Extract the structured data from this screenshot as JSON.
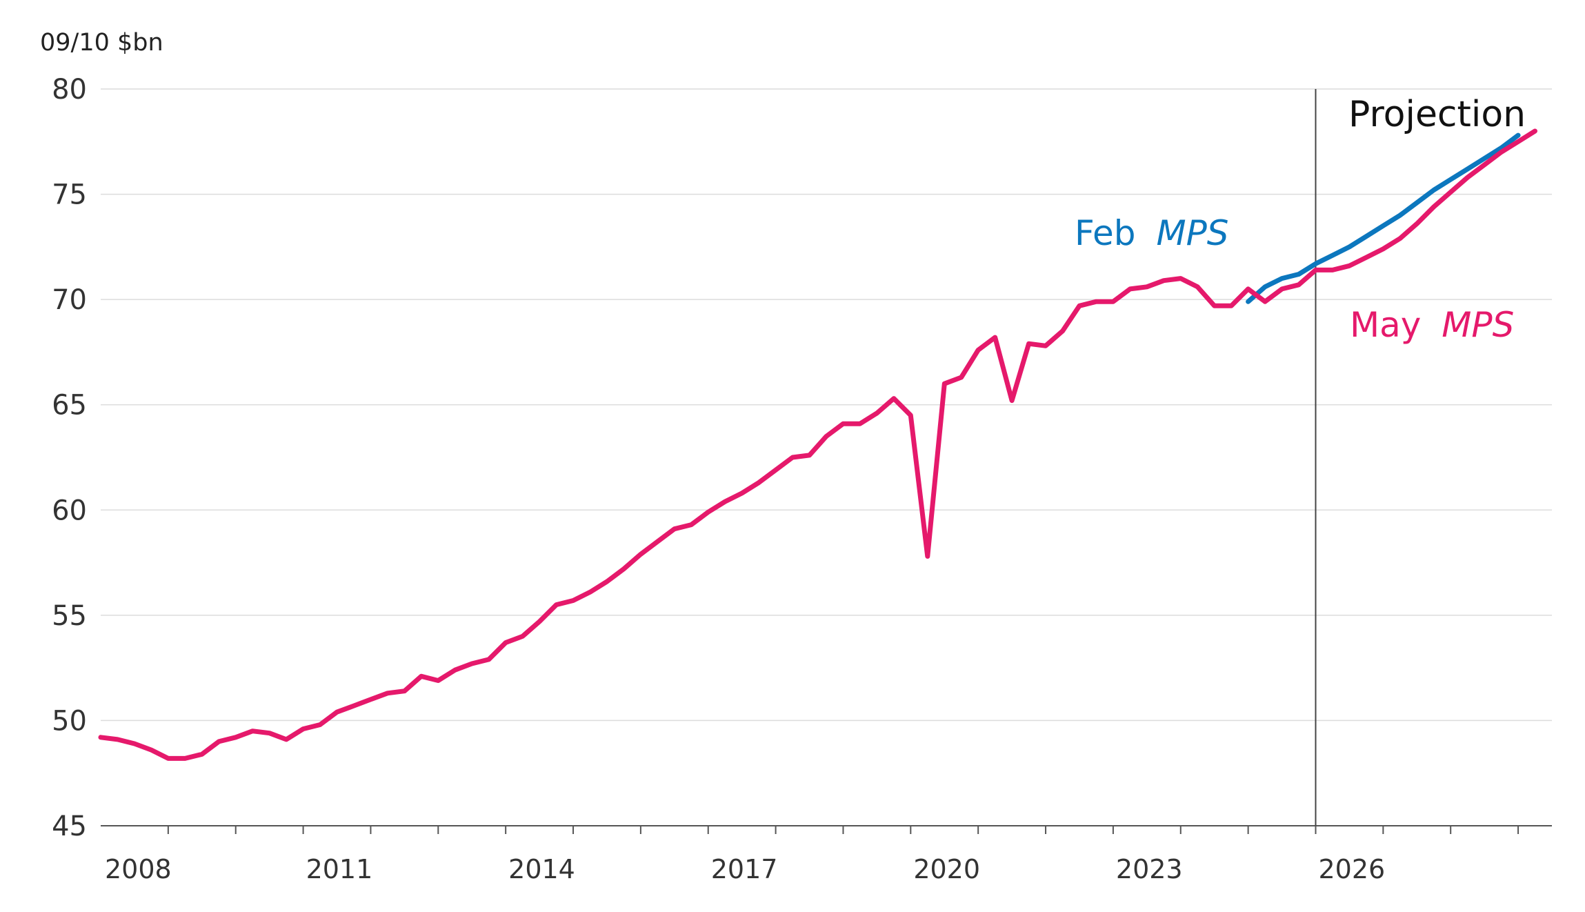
{
  "chart_data": {
    "type": "line",
    "ylabel": "09/10 $bn",
    "ylim": [
      45,
      80
    ],
    "yticks": [
      45,
      50,
      55,
      60,
      65,
      70,
      75,
      80
    ],
    "xticks": [
      "2008",
      "2011",
      "2014",
      "2017",
      "2020",
      "2023",
      "2026"
    ],
    "x_start": 2008.0,
    "x_end": 2029.5,
    "grid": true,
    "projection_start": 2026.0,
    "projection_label": "Projection",
    "series": [
      {
        "name": "Feb",
        "name_emphasis": "MPS",
        "color": "#0C77BE",
        "x": [
          2025.0,
          2025.25,
          2025.5,
          2025.75,
          2026.0,
          2026.25,
          2026.5,
          2026.75,
          2027.0,
          2027.25,
          2027.5,
          2027.75,
          2028.0,
          2028.25,
          2028.5,
          2028.75,
          2029.0
        ],
        "values": [
          69.9,
          70.6,
          71.0,
          71.2,
          71.7,
          72.1,
          72.5,
          73.0,
          73.5,
          74.0,
          74.6,
          75.2,
          75.7,
          76.2,
          76.7,
          77.2,
          77.8
        ]
      },
      {
        "name": "May",
        "name_emphasis": "MPS",
        "color": "#E5196B",
        "x": [
          2008.0,
          2008.25,
          2008.5,
          2008.75,
          2009.0,
          2009.25,
          2009.5,
          2009.75,
          2010.0,
          2010.25,
          2010.5,
          2010.75,
          2011.0,
          2011.25,
          2011.5,
          2011.75,
          2012.0,
          2012.25,
          2012.5,
          2012.75,
          2013.0,
          2013.25,
          2013.5,
          2013.75,
          2014.0,
          2014.25,
          2014.5,
          2014.75,
          2015.0,
          2015.25,
          2015.5,
          2015.75,
          2016.0,
          2016.25,
          2016.5,
          2016.75,
          2017.0,
          2017.25,
          2017.5,
          2017.75,
          2018.0,
          2018.25,
          2018.5,
          2018.75,
          2019.0,
          2019.25,
          2019.5,
          2019.75,
          2020.0,
          2020.25,
          2020.5,
          2020.75,
          2021.0,
          2021.25,
          2021.5,
          2021.75,
          2022.0,
          2022.25,
          2022.5,
          2022.75,
          2023.0,
          2023.25,
          2023.5,
          2023.75,
          2024.0,
          2024.25,
          2024.5,
          2024.75,
          2025.0,
          2025.25,
          2025.5,
          2025.75,
          2026.0,
          2026.25,
          2026.5,
          2026.75,
          2027.0,
          2027.25,
          2027.5,
          2027.75,
          2028.0,
          2028.25,
          2028.5,
          2028.75,
          2029.0,
          2029.25
        ],
        "values": [
          49.2,
          49.1,
          48.9,
          48.6,
          48.2,
          48.2,
          48.4,
          49.0,
          49.2,
          49.5,
          49.4,
          49.1,
          49.6,
          49.8,
          50.4,
          50.7,
          51.0,
          51.3,
          51.4,
          52.1,
          51.9,
          52.4,
          52.7,
          52.9,
          53.7,
          54.0,
          54.7,
          55.5,
          55.7,
          56.1,
          56.6,
          57.2,
          57.9,
          58.5,
          59.1,
          59.3,
          59.9,
          60.4,
          60.8,
          61.3,
          61.9,
          62.5,
          62.6,
          63.5,
          64.1,
          64.1,
          64.6,
          65.3,
          64.5,
          57.8,
          66.0,
          66.3,
          67.6,
          68.2,
          65.2,
          67.9,
          67.8,
          68.5,
          69.7,
          69.9,
          69.9,
          70.5,
          70.6,
          70.9,
          71.0,
          70.6,
          69.7,
          69.7,
          70.5,
          69.9,
          70.5,
          70.7,
          71.4,
          71.4,
          71.6,
          72.0,
          72.4,
          72.9,
          73.6,
          74.4,
          75.1,
          75.8,
          76.4,
          77.0,
          77.5,
          78.0
        ]
      }
    ]
  }
}
